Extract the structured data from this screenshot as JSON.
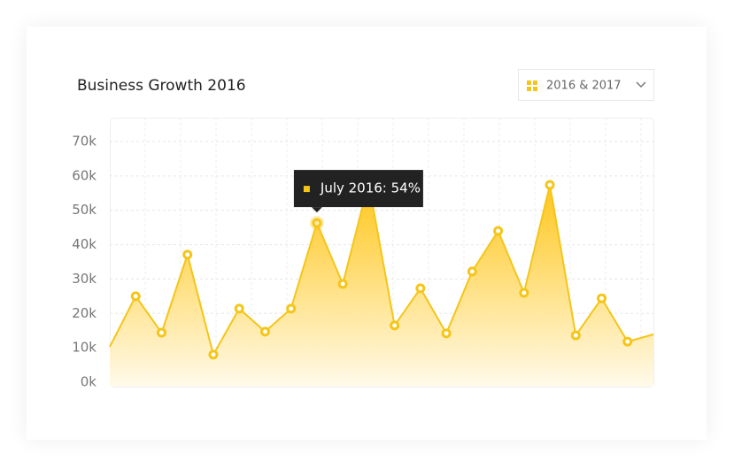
{
  "chart_data": {
    "type": "area",
    "title": "Business Growth 2016",
    "filter_label": "2016 & 2017",
    "tooltip": "July 2016: 54%",
    "categories": [
      null,
      null,
      null,
      null,
      null,
      null,
      null,
      null,
      null,
      null,
      null,
      null,
      null,
      null,
      null,
      null,
      null,
      null,
      null,
      null,
      null,
      null
    ],
    "values": [
      10300,
      25000,
      14400,
      37100,
      8000,
      21400,
      14700,
      21400,
      46300,
      28600,
      58000,
      16500,
      27300,
      14200,
      32200,
      44000,
      26000,
      57400,
      13600,
      24400,
      11800,
      13900
    ],
    "color": "#f5c518",
    "ylim": [
      0,
      70000
    ],
    "yticks": [
      {
        "value": 0,
        "label": "0k"
      },
      {
        "value": 10000,
        "label": "10k"
      },
      {
        "value": 20000,
        "label": "20k"
      },
      {
        "value": 30000,
        "label": "30k"
      },
      {
        "value": 40000,
        "label": "40k"
      },
      {
        "value": 50000,
        "label": "50k"
      },
      {
        "value": 60000,
        "label": "60k"
      },
      {
        "value": 70000,
        "label": "70k"
      }
    ],
    "grid": true
  }
}
